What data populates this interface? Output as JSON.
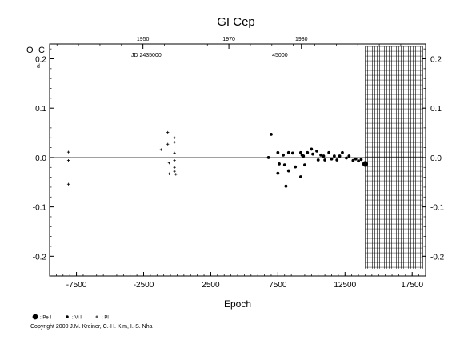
{
  "chart_data": {
    "type": "scatter",
    "title": "GI Cep",
    "ylabel": "O−C",
    "ylabel_unit_top": "d",
    "xlabel": "Epoch",
    "xlim": [
      -9500,
      18500
    ],
    "ylim": [
      -0.24,
      0.23
    ],
    "xticks": [
      -7500,
      -2500,
      2500,
      7500,
      12500,
      17500
    ],
    "xtick_labels": [
      "-7500",
      "-2500",
      "2500",
      "7500",
      "12500",
      "17500"
    ],
    "yticks": [
      0.2,
      0.1,
      0.0,
      -0.1,
      -0.2
    ],
    "ytick_labels": [
      "0.2",
      "0.1",
      "0.0",
      "-0.1",
      "-0.2"
    ],
    "ytick_labels_right": [
      "0.2",
      "0.1",
      "0.0",
      "-0.1",
      "-0.2"
    ],
    "top_year_ticks": [
      {
        "label": "1950",
        "epoch": -2550
      },
      {
        "label": "1970",
        "epoch": 3850
      },
      {
        "label": "1980",
        "epoch": 9250
      }
    ],
    "jd_labels": [
      {
        "label": "JD 2435000",
        "epoch": -2300
      },
      {
        "label": "45000",
        "epoch": 7650
      }
    ],
    "grid": false,
    "zero_line": true,
    "hatched_region": {
      "x_from": 14000,
      "x_to": 18300
    },
    "legend": {
      "placement": "bottom-left",
      "entries": [
        {
          "symbol": "large-dot",
          "label": ": Pe I"
        },
        {
          "symbol": "medium-dot",
          "label": ": Vi I"
        },
        {
          "symbol": "plus",
          "label": ": Pl"
        }
      ]
    },
    "series": [
      {
        "name": ": Pl",
        "symbol": "plus",
        "x": [
          -8100,
          -8100,
          -8100,
          -1200,
          -700,
          -700,
          -200,
          -200,
          -200,
          -200,
          -200,
          -200,
          -100,
          -600,
          -600
        ],
        "y": [
          0.011,
          -0.006,
          -0.054,
          0.016,
          0.027,
          0.051,
          0.04,
          0.031,
          0.009,
          -0.006,
          -0.02,
          -0.028,
          -0.034,
          -0.011,
          -0.033
        ]
      },
      {
        "name": ": Vi I",
        "symbol": "medium-dot",
        "x": [
          6800,
          7000,
          7500,
          7500,
          7600,
          7900,
          8000,
          8100,
          8300,
          8300,
          8600,
          8800,
          9200,
          9200,
          9300,
          9400,
          9500,
          9700,
          10000,
          10100,
          10400,
          10500,
          10700,
          10900,
          11000,
          11300,
          11500,
          11700,
          11900,
          12100,
          12300,
          12600,
          12800,
          13100,
          13300,
          13500,
          13700
        ],
        "y": [
          0.0,
          0.047,
          0.01,
          -0.032,
          -0.013,
          0.005,
          -0.015,
          -0.058,
          0.01,
          -0.027,
          0.009,
          -0.019,
          0.01,
          -0.039,
          0.005,
          0.003,
          -0.015,
          0.01,
          0.017,
          0.007,
          0.013,
          -0.005,
          0.005,
          0.003,
          -0.005,
          0.01,
          -0.003,
          0.003,
          -0.005,
          0.003,
          0.01,
          -0.001,
          0.003,
          -0.006,
          -0.003,
          -0.007,
          -0.004
        ]
      },
      {
        "name": ": Pe I",
        "symbol": "large-dot",
        "x": [
          14000
        ],
        "y": [
          -0.013
        ]
      }
    ]
  },
  "copyright": "Copyright 2000 J.M. Kreiner, C.-H. Kim, I.-S. Nha"
}
